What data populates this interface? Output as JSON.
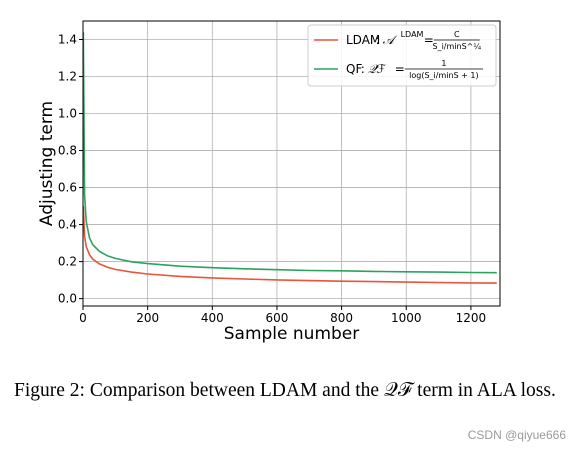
{
  "chart_data": {
    "type": "line",
    "xlabel": "Sample number",
    "ylabel": "Adjusting term",
    "xlim": [
      0,
      1290
    ],
    "ylim": [
      -0.04,
      1.5
    ],
    "xticks": [
      0,
      200,
      400,
      600,
      800,
      1000,
      1200
    ],
    "yticks": [
      0.0,
      0.2,
      0.4,
      0.6,
      0.8,
      1.0,
      1.2,
      1.4
    ],
    "xtick_labels": [
      "0",
      "200",
      "400",
      "600",
      "800",
      "1000",
      "1200"
    ],
    "ytick_labels": [
      "0.0",
      "0.2",
      "0.4",
      "0.6",
      "0.8",
      "1.0",
      "1.2",
      "1.4"
    ],
    "grid": true,
    "legend_position": "top-right",
    "series": [
      {
        "name": "LDAM",
        "legend_formula_lhs": "𝒜",
        "legend_formula_sup": "LDAM",
        "legend_formula_num": "C",
        "legend_formula_den": "S_i/minS^¼",
        "color": "#e8553b",
        "x": [
          1,
          5,
          10,
          20,
          30,
          50,
          75,
          100,
          150,
          200,
          300,
          400,
          500,
          600,
          700,
          800,
          900,
          1000,
          1100,
          1200,
          1280
        ],
        "y": [
          0.5,
          0.335,
          0.282,
          0.237,
          0.214,
          0.188,
          0.17,
          0.158,
          0.143,
          0.133,
          0.12,
          0.112,
          0.106,
          0.101,
          0.097,
          0.094,
          0.092,
          0.089,
          0.087,
          0.085,
          0.084
        ]
      },
      {
        "name": "QF",
        "legend_formula_lhs": "𝒬ℱ",
        "legend_formula_num": "1",
        "legend_formula_den": "log(S_i/minS + 1)",
        "color": "#2ca25f",
        "x": [
          1,
          5,
          10,
          20,
          30,
          50,
          75,
          100,
          150,
          200,
          300,
          400,
          500,
          600,
          700,
          800,
          900,
          1000,
          1100,
          1200,
          1280
        ],
        "y": [
          1.44,
          0.56,
          0.417,
          0.328,
          0.292,
          0.256,
          0.232,
          0.217,
          0.199,
          0.189,
          0.175,
          0.167,
          0.161,
          0.156,
          0.152,
          0.15,
          0.147,
          0.145,
          0.143,
          0.141,
          0.14
        ]
      }
    ]
  },
  "caption": "Figure 2: Comparison between LDAM and the 𝒬ℱ term in ALA loss.",
  "watermark": "CSDN @qiyue666"
}
